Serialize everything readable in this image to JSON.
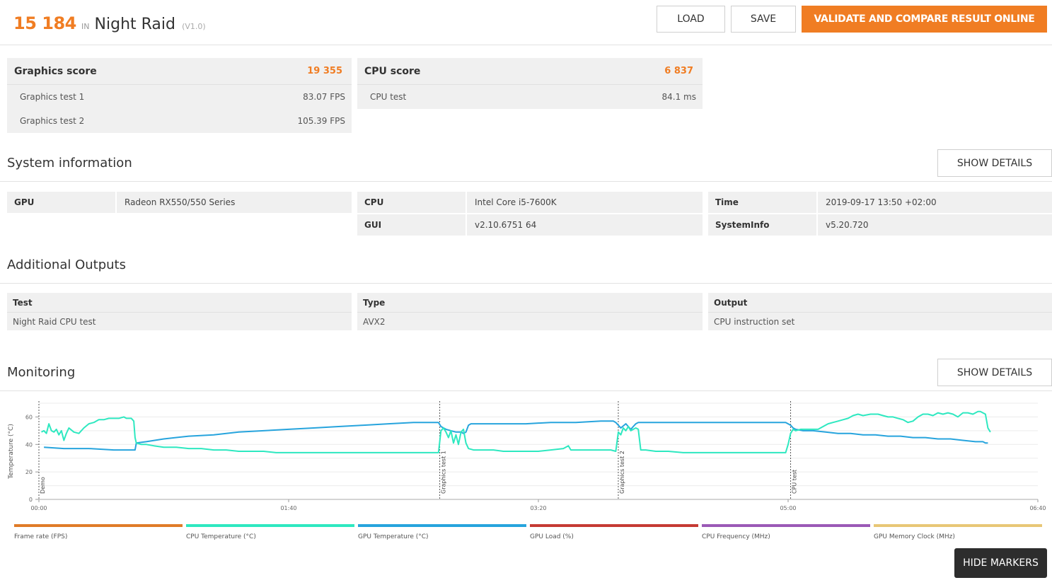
{
  "header": {
    "score": "15 184",
    "in_label": "IN",
    "benchmark": "Night Raid",
    "version": "(V1.0)",
    "load_label": "LOAD",
    "save_label": "SAVE",
    "validate_label": "VALIDATE AND COMPARE RESULT ONLINE"
  },
  "graphics": {
    "label": "Graphics score",
    "value": "19 355",
    "tests": [
      {
        "name": "Graphics test 1",
        "value": "83.07 FPS"
      },
      {
        "name": "Graphics test 2",
        "value": "105.39 FPS"
      }
    ]
  },
  "cpu": {
    "label": "CPU score",
    "value": "6 837",
    "tests": [
      {
        "name": "CPU test",
        "value": "84.1 ms"
      }
    ]
  },
  "system": {
    "title": "System information",
    "show_details": "SHOW DETAILS",
    "gpu_key": "GPU",
    "gpu_val": "Radeon RX550/550 Series",
    "cpu_key": "CPU",
    "cpu_val": "Intel Core i5-7600K",
    "gui_key": "GUI",
    "gui_val": "v2.10.6751 64",
    "time_key": "Time",
    "time_val": "2019-09-17 13:50 +02:00",
    "sysinfo_key": "SystemInfo",
    "sysinfo_val": "v5.20.720"
  },
  "outputs": {
    "title": "Additional Outputs",
    "columns": [
      {
        "header": "Test",
        "value": "Night Raid CPU test"
      },
      {
        "header": "Type",
        "value": "AVX2"
      },
      {
        "header": "Output",
        "value": "CPU instruction set"
      }
    ]
  },
  "monitoring": {
    "title": "Monitoring",
    "show_details": "SHOW DETAILS",
    "hide_markers": "HIDE MARKERS"
  },
  "colors": {
    "accent": "#f07d23",
    "cpu_temp": "#2ee8c0",
    "gpu_temp": "#27a4dd"
  },
  "chart_data": {
    "type": "line",
    "ylabel": "Temperature (°C)",
    "ylim": [
      0,
      70
    ],
    "yticks": [
      0,
      20,
      40,
      60
    ],
    "xlim": [
      0,
      400
    ],
    "xticks": [
      {
        "t": 0,
        "label": "00:00"
      },
      {
        "t": 100,
        "label": "01:40"
      },
      {
        "t": 200,
        "label": "03:20"
      },
      {
        "t": 300,
        "label": "05:00"
      },
      {
        "t": 400,
        "label": "06:40"
      }
    ],
    "markers": [
      {
        "t": 0,
        "label": "Demo"
      },
      {
        "t": 160.5,
        "label": "Graphics test 1"
      },
      {
        "t": 232,
        "label": "Graphics test 2"
      },
      {
        "t": 301,
        "label": "CPU test"
      }
    ],
    "grid": true,
    "series": [
      {
        "name": "CPU Temperature (°C)",
        "color": "#2ee8c0",
        "points": [
          [
            1,
            49
          ],
          [
            2,
            50
          ],
          [
            3,
            48
          ],
          [
            4,
            55
          ],
          [
            5,
            50
          ],
          [
            6,
            49
          ],
          [
            7,
            51
          ],
          [
            8,
            47
          ],
          [
            9,
            50
          ],
          [
            10,
            43
          ],
          [
            11,
            48
          ],
          [
            12,
            52
          ],
          [
            14,
            49
          ],
          [
            16,
            48
          ],
          [
            18,
            52
          ],
          [
            20,
            55
          ],
          [
            22,
            56
          ],
          [
            24,
            58
          ],
          [
            26,
            58
          ],
          [
            28,
            59
          ],
          [
            30,
            59
          ],
          [
            32,
            59
          ],
          [
            34,
            60
          ],
          [
            35,
            59
          ],
          [
            37,
            59
          ],
          [
            38,
            57
          ],
          [
            38.5,
            45
          ],
          [
            39,
            41
          ],
          [
            41,
            40
          ],
          [
            43,
            40
          ],
          [
            46,
            39
          ],
          [
            50,
            38
          ],
          [
            55,
            38
          ],
          [
            60,
            37
          ],
          [
            65,
            37
          ],
          [
            70,
            36
          ],
          [
            75,
            36
          ],
          [
            80,
            35
          ],
          [
            85,
            35
          ],
          [
            90,
            35
          ],
          [
            95,
            34
          ],
          [
            100,
            34
          ],
          [
            105,
            34
          ],
          [
            110,
            34
          ],
          [
            115,
            34
          ],
          [
            120,
            34
          ],
          [
            125,
            34
          ],
          [
            130,
            34
          ],
          [
            135,
            34
          ],
          [
            140,
            34
          ],
          [
            145,
            34
          ],
          [
            150,
            34
          ],
          [
            155,
            34
          ],
          [
            160,
            34
          ],
          [
            161,
            50
          ],
          [
            162,
            52
          ],
          [
            163,
            49
          ],
          [
            164,
            45
          ],
          [
            165,
            50
          ],
          [
            166,
            41
          ],
          [
            167,
            47
          ],
          [
            168,
            40
          ],
          [
            169,
            49
          ],
          [
            170,
            51
          ],
          [
            171,
            41
          ],
          [
            172,
            37
          ],
          [
            174,
            36
          ],
          [
            178,
            36
          ],
          [
            182,
            36
          ],
          [
            186,
            35
          ],
          [
            190,
            35
          ],
          [
            195,
            35
          ],
          [
            200,
            35
          ],
          [
            205,
            36
          ],
          [
            210,
            37
          ],
          [
            212,
            39
          ],
          [
            213,
            36
          ],
          [
            216,
            36
          ],
          [
            220,
            36
          ],
          [
            225,
            36
          ],
          [
            229,
            36
          ],
          [
            231,
            35
          ],
          [
            232,
            49
          ],
          [
            233,
            47
          ],
          [
            234,
            52
          ],
          [
            235,
            50
          ],
          [
            236,
            53
          ],
          [
            237,
            50
          ],
          [
            238,
            51
          ],
          [
            239,
            52
          ],
          [
            240,
            51
          ],
          [
            241,
            36
          ],
          [
            243,
            36
          ],
          [
            247,
            35
          ],
          [
            252,
            35
          ],
          [
            258,
            34
          ],
          [
            264,
            34
          ],
          [
            270,
            34
          ],
          [
            276,
            34
          ],
          [
            282,
            34
          ],
          [
            288,
            34
          ],
          [
            294,
            34
          ],
          [
            299,
            34
          ],
          [
            300,
            40
          ],
          [
            301,
            48
          ],
          [
            302,
            51
          ],
          [
            303,
            50
          ],
          [
            305,
            51
          ],
          [
            308,
            51
          ],
          [
            312,
            51
          ],
          [
            314,
            53
          ],
          [
            316,
            55
          ],
          [
            318,
            56
          ],
          [
            320,
            57
          ],
          [
            322,
            58
          ],
          [
            324,
            59
          ],
          [
            326,
            61
          ],
          [
            328,
            62
          ],
          [
            330,
            61
          ],
          [
            333,
            62
          ],
          [
            336,
            62
          ],
          [
            338,
            61
          ],
          [
            340,
            60
          ],
          [
            342,
            60
          ],
          [
            344,
            59
          ],
          [
            346,
            58
          ],
          [
            348,
            56
          ],
          [
            350,
            57
          ],
          [
            352,
            60
          ],
          [
            354,
            62
          ],
          [
            356,
            62
          ],
          [
            358,
            61
          ],
          [
            360,
            63
          ],
          [
            362,
            62
          ],
          [
            364,
            63
          ],
          [
            366,
            62
          ],
          [
            368,
            60
          ],
          [
            370,
            63
          ],
          [
            372,
            63
          ],
          [
            374,
            62
          ],
          [
            376,
            64
          ],
          [
            377,
            64
          ],
          [
            378,
            63
          ],
          [
            379,
            62
          ],
          [
            380,
            52
          ],
          [
            381,
            49
          ]
        ]
      },
      {
        "name": "GPU Temperature (°C)",
        "color": "#27a4dd",
        "points": [
          [
            2,
            38
          ],
          [
            10,
            37
          ],
          [
            20,
            37
          ],
          [
            30,
            36
          ],
          [
            37,
            36
          ],
          [
            38.5,
            36
          ],
          [
            39,
            41
          ],
          [
            43,
            42
          ],
          [
            50,
            44
          ],
          [
            60,
            46
          ],
          [
            70,
            47
          ],
          [
            80,
            49
          ],
          [
            90,
            50
          ],
          [
            100,
            51
          ],
          [
            110,
            52
          ],
          [
            120,
            53
          ],
          [
            130,
            54
          ],
          [
            140,
            55
          ],
          [
            150,
            56
          ],
          [
            155,
            56
          ],
          [
            160,
            56
          ],
          [
            161,
            53
          ],
          [
            163,
            51
          ],
          [
            165,
            50
          ],
          [
            167,
            49
          ],
          [
            169,
            49
          ],
          [
            170,
            48
          ],
          [
            171,
            49
          ],
          [
            172,
            54
          ],
          [
            173,
            55
          ],
          [
            178,
            55
          ],
          [
            185,
            55
          ],
          [
            195,
            55
          ],
          [
            205,
            56
          ],
          [
            215,
            56
          ],
          [
            225,
            57
          ],
          [
            230,
            57
          ],
          [
            231,
            56
          ],
          [
            232,
            54
          ],
          [
            233,
            52
          ],
          [
            235,
            55
          ],
          [
            236,
            53
          ],
          [
            237,
            51
          ],
          [
            238,
            53
          ],
          [
            239,
            55
          ],
          [
            240,
            56
          ],
          [
            245,
            56
          ],
          [
            255,
            56
          ],
          [
            265,
            56
          ],
          [
            275,
            56
          ],
          [
            285,
            56
          ],
          [
            295,
            56
          ],
          [
            299,
            56
          ],
          [
            300,
            55
          ],
          [
            301,
            54
          ],
          [
            302,
            52
          ],
          [
            303,
            51
          ],
          [
            306,
            50
          ],
          [
            310,
            50
          ],
          [
            315,
            49
          ],
          [
            320,
            48
          ],
          [
            325,
            48
          ],
          [
            330,
            47
          ],
          [
            335,
            47
          ],
          [
            340,
            46
          ],
          [
            345,
            46
          ],
          [
            350,
            45
          ],
          [
            355,
            45
          ],
          [
            360,
            44
          ],
          [
            365,
            44
          ],
          [
            370,
            43
          ],
          [
            375,
            42
          ],
          [
            378,
            42
          ],
          [
            379,
            41
          ],
          [
            380,
            41
          ]
        ]
      }
    ]
  },
  "legend": [
    {
      "label": "Frame rate (FPS)",
      "color": "#e07b28"
    },
    {
      "label": "CPU Temperature (°C)",
      "color": "#2ee8c0"
    },
    {
      "label": "GPU Temperature (°C)",
      "color": "#27a4dd"
    },
    {
      "label": "GPU Load (%)",
      "color": "#c53a33"
    },
    {
      "label": "CPU Frequency (MHz)",
      "color": "#9b59b6"
    },
    {
      "label": "GPU Memory Clock (MHz)",
      "color": "#e8c776"
    }
  ]
}
